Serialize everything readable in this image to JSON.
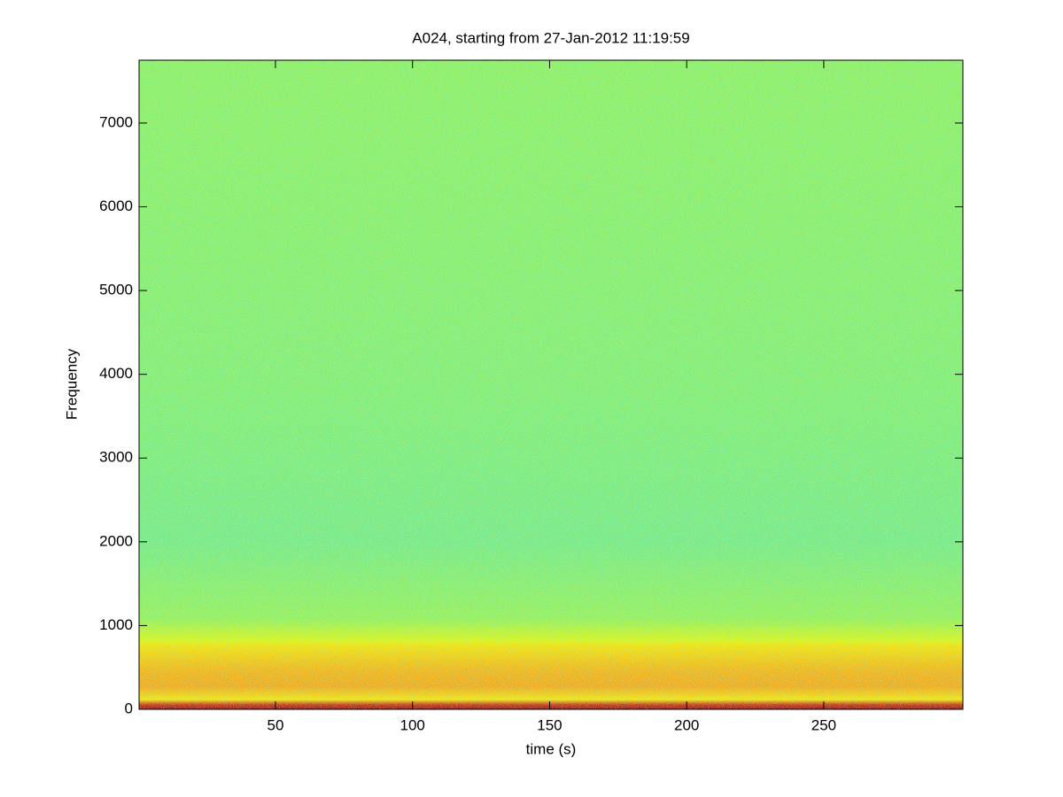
{
  "chart_data": {
    "type": "spectrogram",
    "title": "A024, starting from 27-Jan-2012 11:19:59",
    "x_label": "time (s)",
    "y_label": "Frequency",
    "xlim": [
      0.25,
      300.75
    ],
    "xticks": [
      50,
      100,
      150,
      200,
      250
    ],
    "ylim": [
      0,
      7750
    ],
    "yticks": [
      0,
      1000,
      2000,
      3000,
      4000,
      5000,
      6000,
      7000
    ]
  }
}
